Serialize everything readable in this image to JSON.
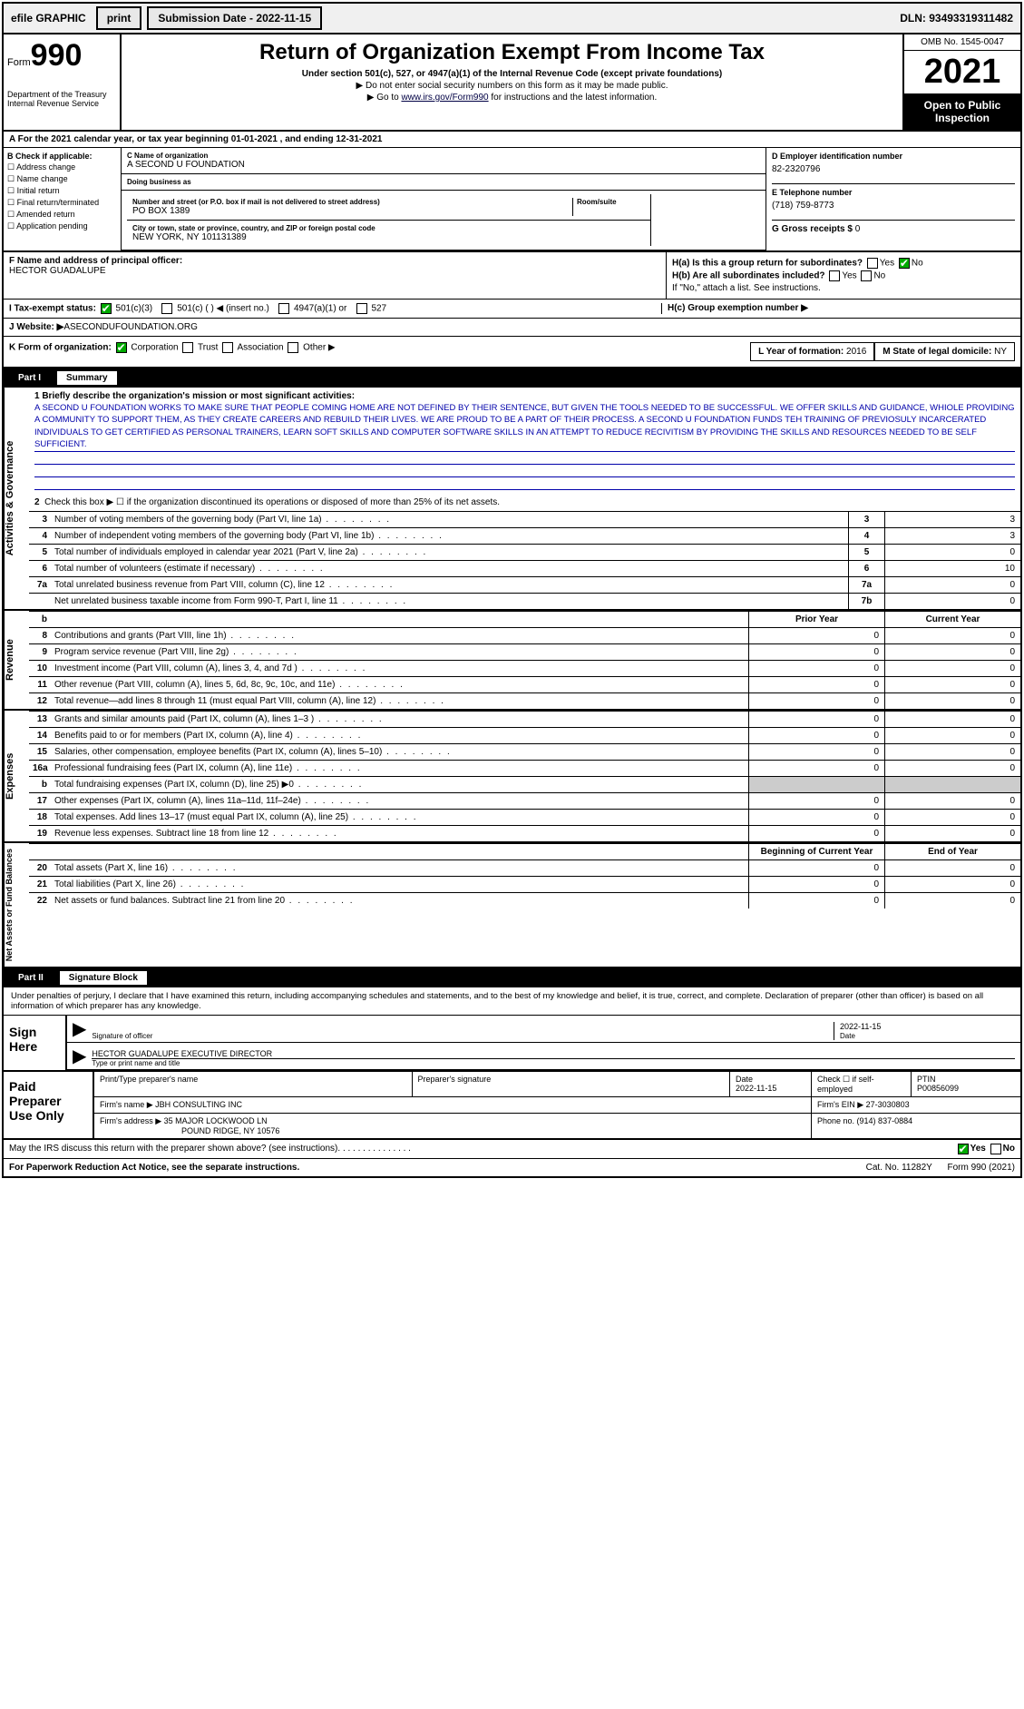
{
  "topbar": {
    "efile": "efile GRAPHIC",
    "print": "print",
    "sub_label": "Submission Date - ",
    "sub_date": "2022-11-15",
    "dln_label": "DLN: ",
    "dln": "93493319311482"
  },
  "header": {
    "form_word": "Form",
    "form_num": "990",
    "dept": "Department of the Treasury\nInternal Revenue Service",
    "title": "Return of Organization Exempt From Income Tax",
    "sub1": "Under section 501(c), 527, or 4947(a)(1) of the Internal Revenue Code (except private foundations)",
    "sub2": "▶ Do not enter social security numbers on this form as it may be made public.",
    "sub3_pre": "▶ Go to ",
    "sub3_link": "www.irs.gov/Form990",
    "sub3_post": " for instructions and the latest information.",
    "omb": "OMB No. 1545-0047",
    "year": "2021",
    "open": "Open to Public Inspection"
  },
  "line_a": "For the 2021 calendar year, or tax year beginning 01-01-2021   , and ending 12-31-2021",
  "col_b": {
    "hdr": "B Check if applicable:",
    "items": [
      "Address change",
      "Name change",
      "Initial return",
      "Final return/terminated",
      "Amended return",
      "Application pending"
    ]
  },
  "col_c": {
    "name_lab": "C Name of organization",
    "name": "A SECOND U FOUNDATION",
    "dba_lab": "Doing business as",
    "dba": "",
    "addr_lab": "Number and street (or P.O. box if mail is not delivered to street address)",
    "addr": "PO BOX 1389",
    "room_lab": "Room/suite",
    "city_lab": "City or town, state or province, country, and ZIP or foreign postal code",
    "city": "NEW YORK, NY  101131389"
  },
  "col_d": {
    "ein_lab": "D Employer identification number",
    "ein": "82-2320796",
    "tel_lab": "E Telephone number",
    "tel": "(718) 759-8773",
    "gross_lab": "G Gross receipts $ ",
    "gross": "0"
  },
  "sec_f": {
    "f_lab": "F  Name and address of principal officer:",
    "f_name": "HECTOR GUADALUPE",
    "ha_lab": "H(a)  Is this a group return for subordinates?",
    "hb_lab": "H(b)  Are all subordinates included?",
    "hb_note": "If \"No,\" attach a list. See instructions.",
    "hc_lab": "H(c)  Group exemption number ▶"
  },
  "row_i": {
    "lab": "I    Tax-exempt status:",
    "o1": "501(c)(3)",
    "o2": "501(c) (  ) ◀ (insert no.)",
    "o3": "4947(a)(1) or",
    "o4": "527"
  },
  "row_j": {
    "lab": "J   Website: ▶  ",
    "val": "ASECONDUFOUNDATION.ORG"
  },
  "row_k": {
    "lab": "K Form of organization:",
    "o1": "Corporation",
    "o2": "Trust",
    "o3": "Association",
    "o4": "Other ▶",
    "l_lab": "L Year of formation: ",
    "l_val": "2016",
    "m_lab": "M State of legal domicile: ",
    "m_val": "NY"
  },
  "part1": {
    "num": "Part I",
    "title": "Summary"
  },
  "mission_lab": "1   Briefly describe the organization's mission or most significant activities:",
  "mission": "A SECOND U FOUNDATION WORKS TO MAKE SURE THAT PEOPLE COMING HOME ARE NOT DEFINED BY THEIR SENTENCE, BUT GIVEN THE TOOLS NEEDED TO BE SUCCESSFUL. WE OFFER SKILLS AND GUIDANCE, WHIOLE PROVIDING A COMMUNITY TO SUPPORT THEM, AS THEY CREATE CAREERS AND REBUILD THEIR LIVES. WE ARE PROUD TO BE A PART OF THEIR PROCESS. A SECOND U FOUNDATION FUNDS TEH TRAINING OF PREVIOSULY INCARCERATED INDIVIDUALS TO GET CERTIFIED AS PERSONAL TRAINERS, LEARN SOFT SKILLS AND COMPUTER SOFTWARE SKILLS IN AN ATTEMPT TO REDUCE RECIVITISM BY PROVIDING THE SKILLS AND RESOURCES NEEDED TO BE SELF SUFFICIENT.",
  "line2": "Check this box ▶ ☐ if the organization discontinued its operations or disposed of more than 25% of its net assets.",
  "gov_rows": [
    {
      "n": "3",
      "t": "Number of voting members of the governing body (Part VI, line 1a)",
      "c": "3",
      "v": "3"
    },
    {
      "n": "4",
      "t": "Number of independent voting members of the governing body (Part VI, line 1b)",
      "c": "4",
      "v": "3"
    },
    {
      "n": "5",
      "t": "Total number of individuals employed in calendar year 2021 (Part V, line 2a)",
      "c": "5",
      "v": "0"
    },
    {
      "n": "6",
      "t": "Total number of volunteers (estimate if necessary)",
      "c": "6",
      "v": "10"
    },
    {
      "n": "7a",
      "t": "Total unrelated business revenue from Part VIII, column (C), line 12",
      "c": "7a",
      "v": "0"
    },
    {
      "n": "",
      "t": "Net unrelated business taxable income from Form 990-T, Part I, line 11",
      "c": "7b",
      "v": "0"
    }
  ],
  "rev_hdr": {
    "b": "b",
    "py": "Prior Year",
    "cy": "Current Year"
  },
  "rev_rows": [
    {
      "n": "8",
      "t": "Contributions and grants (Part VIII, line 1h)",
      "py": "0",
      "cy": "0"
    },
    {
      "n": "9",
      "t": "Program service revenue (Part VIII, line 2g)",
      "py": "0",
      "cy": "0"
    },
    {
      "n": "10",
      "t": "Investment income (Part VIII, column (A), lines 3, 4, and 7d )",
      "py": "0",
      "cy": "0"
    },
    {
      "n": "11",
      "t": "Other revenue (Part VIII, column (A), lines 5, 6d, 8c, 9c, 10c, and 11e)",
      "py": "0",
      "cy": "0"
    },
    {
      "n": "12",
      "t": "Total revenue—add lines 8 through 11 (must equal Part VIII, column (A), line 12)",
      "py": "0",
      "cy": "0"
    }
  ],
  "exp_rows": [
    {
      "n": "13",
      "t": "Grants and similar amounts paid (Part IX, column (A), lines 1–3 )",
      "py": "0",
      "cy": "0"
    },
    {
      "n": "14",
      "t": "Benefits paid to or for members (Part IX, column (A), line 4)",
      "py": "0",
      "cy": "0"
    },
    {
      "n": "15",
      "t": "Salaries, other compensation, employee benefits (Part IX, column (A), lines 5–10)",
      "py": "0",
      "cy": "0"
    },
    {
      "n": "16a",
      "t": "Professional fundraising fees (Part IX, column (A), line 11e)",
      "py": "0",
      "cy": "0"
    },
    {
      "n": "b",
      "t": "Total fundraising expenses (Part IX, column (D), line 25) ▶0",
      "py": "",
      "cy": "",
      "shade": true
    },
    {
      "n": "17",
      "t": "Other expenses (Part IX, column (A), lines 11a–11d, 11f–24e)",
      "py": "0",
      "cy": "0"
    },
    {
      "n": "18",
      "t": "Total expenses. Add lines 13–17 (must equal Part IX, column (A), line 25)",
      "py": "0",
      "cy": "0"
    },
    {
      "n": "19",
      "t": "Revenue less expenses. Subtract line 18 from line 12",
      "py": "0",
      "cy": "0"
    }
  ],
  "bal_hdr": {
    "py": "Beginning of Current Year",
    "cy": "End of Year"
  },
  "bal_rows": [
    {
      "n": "20",
      "t": "Total assets (Part X, line 16)",
      "py": "0",
      "cy": "0"
    },
    {
      "n": "21",
      "t": "Total liabilities (Part X, line 26)",
      "py": "0",
      "cy": "0"
    },
    {
      "n": "22",
      "t": "Net assets or fund balances. Subtract line 21 from line 20",
      "py": "0",
      "cy": "0"
    }
  ],
  "vtabs": {
    "gov": "Activities & Governance",
    "rev": "Revenue",
    "exp": "Expenses",
    "bal": "Net Assets or Fund Balances"
  },
  "part2": {
    "num": "Part II",
    "title": "Signature Block"
  },
  "sig_intro": "Under penalties of perjury, I declare that I have examined this return, including accompanying schedules and statements, and to the best of my knowledge and belief, it is true, correct, and complete. Declaration of preparer (other than officer) is based on all information of which preparer has any knowledge.",
  "sign": {
    "lab": "Sign Here",
    "l1": "Signature of officer",
    "l1d": "2022-11-15",
    "l1d_lab": "Date",
    "l2v": "HECTOR GUADALUPE  EXECUTIVE DIRECTOR",
    "l2": "Type or print name and title"
  },
  "prep": {
    "lab": "Paid Preparer Use Only",
    "r1c1": "Print/Type preparer's name",
    "r1c2": "Preparer's signature",
    "r1c3_lab": "Date",
    "r1c3": "2022-11-15",
    "r1c4_lab": "Check ☐ if self-employed",
    "r1c5_lab": "PTIN",
    "r1c5": "P00856099",
    "r2_lab": "Firm's name      ▶ ",
    "r2": "JBH CONSULTING INC",
    "r2b_lab": "Firm's EIN ▶ ",
    "r2b": "27-3030803",
    "r3_lab": "Firm's address ▶ ",
    "r3": "35 MAJOR LOCKWOOD LN",
    "r3b": "POUND RIDGE, NY  10576",
    "r3c_lab": "Phone no. ",
    "r3c": "(914) 837-0884"
  },
  "foot1": "May the IRS discuss this return with the preparer shown above? (see instructions)",
  "foot2": "For Paperwork Reduction Act Notice, see the separate instructions.",
  "foot_cat": "Cat. No. 11282Y",
  "foot_form": "Form 990 (2021)",
  "yn": {
    "yes": "Yes",
    "no": "No"
  }
}
